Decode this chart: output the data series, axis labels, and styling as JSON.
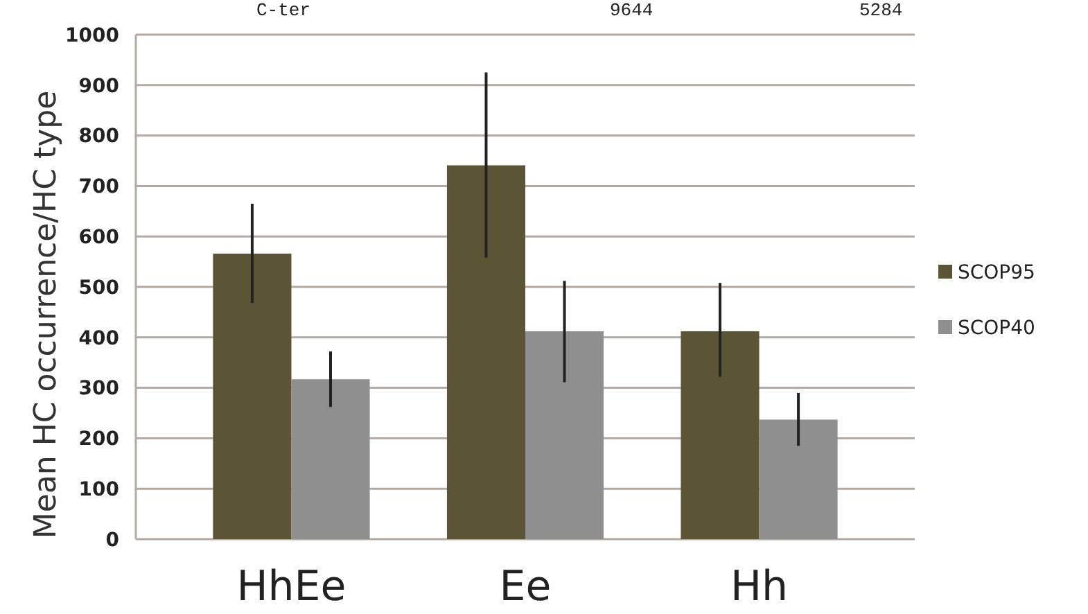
{
  "chart_data": {
    "type": "bar",
    "ylabel": "Mean HC occurrence/HC type",
    "categories": [
      "HhEe",
      "Ee",
      "Hh"
    ],
    "series": [
      {
        "name": "SCOP95",
        "color": "#5b5535",
        "values": [
          566,
          741,
          412
        ],
        "errors": [
          [
            468,
            665
          ],
          [
            558,
            925
          ],
          [
            322,
            508
          ]
        ]
      },
      {
        "name": "SCOP40",
        "color": "#8f8f8f",
        "values": [
          317,
          412,
          237
        ],
        "errors": [
          [
            262,
            372
          ],
          [
            311,
            512
          ],
          [
            185,
            290
          ]
        ]
      }
    ],
    "ylim": [
      0,
      1000
    ],
    "yticks": [
      0,
      100,
      200,
      300,
      400,
      500,
      600,
      700,
      800,
      900,
      1000
    ],
    "grid": "y",
    "legend": "right",
    "annotations": [
      "C-ter",
      "9644",
      "5284"
    ]
  }
}
